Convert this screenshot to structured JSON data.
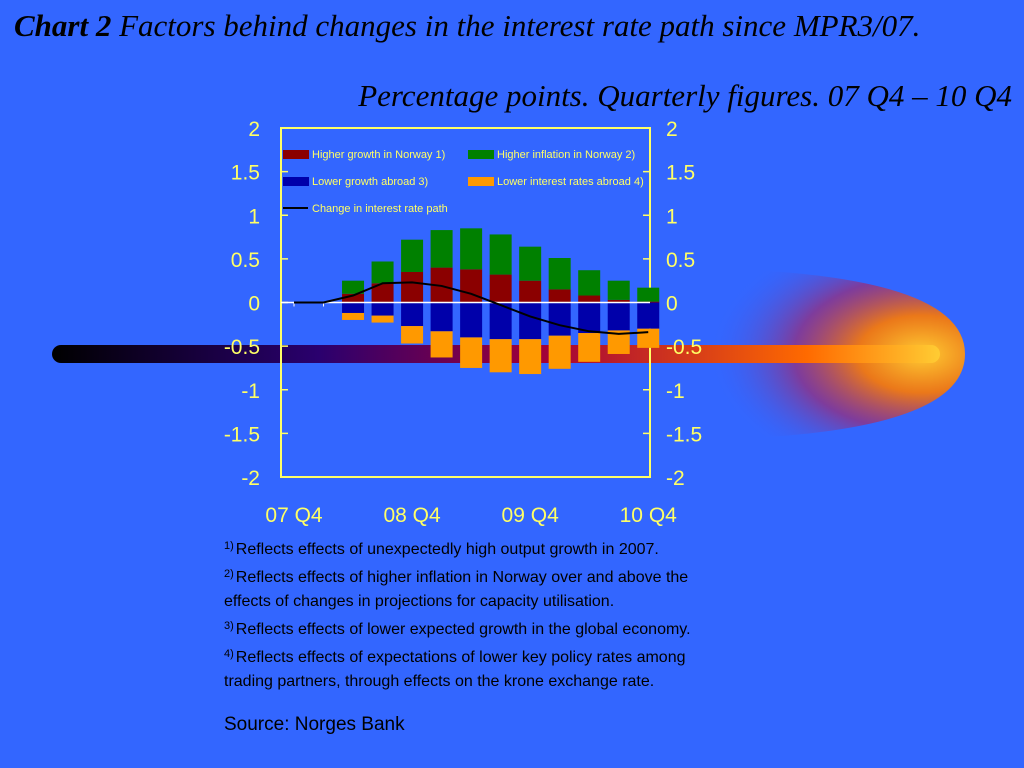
{
  "slide": {
    "title_bold": "Chart 2",
    "title_rest": " Factors behind changes in the interest rate path since MPR3/07.",
    "subtitle": "Percentage points. Quarterly figures. 07 Q4 – 10 Q4",
    "footnotes": [
      {
        "marker": "1)",
        "text": "Reflects effects of unexpectedly high output growth in 2007."
      },
      {
        "marker": "2)",
        "text": "Reflects effects of higher inflation in Norway over and above the effects of changes in projections for capacity utilisation."
      },
      {
        "marker": "3)",
        "text": "Reflects effects of lower expected growth in the global economy."
      },
      {
        "marker": "4)",
        "text": "Reflects effects of expectations of lower key policy rates among trading partners, through effects on the krone exchange rate."
      }
    ],
    "source": "Source: Norges Bank"
  },
  "colors": {
    "background": "#3366ff",
    "axis": "#ffff66",
    "higher_growth_norway": "#8b0000",
    "higher_inflation_norway": "#008000",
    "lower_growth_abroad": "#0000aa",
    "lower_rates_abroad": "#ff9900",
    "interest_path": "#000000"
  },
  "chart_data": {
    "type": "bar",
    "stacked": true,
    "title": "",
    "xlabel": "",
    "ylabel": "",
    "ylim": [
      -2,
      2
    ],
    "yticks": [
      "2",
      "1.5",
      "1",
      "0.5",
      "0",
      "-0.5",
      "-1",
      "-1.5",
      "-2"
    ],
    "ytick_values": [
      2,
      1.5,
      1,
      0.5,
      0,
      -0.5,
      -1,
      -1.5,
      -2
    ],
    "x_tick_labels": [
      "07 Q4",
      "08 Q4",
      "09 Q4",
      "10 Q4"
    ],
    "x_tick_positions": [
      0,
      4,
      8,
      12
    ],
    "categories": [
      "07 Q4",
      "08 Q1",
      "08 Q2",
      "08 Q3",
      "08 Q4",
      "09 Q1",
      "09 Q2",
      "09 Q3",
      "09 Q4",
      "10 Q1",
      "10 Q2",
      "10 Q3",
      "10 Q4"
    ],
    "series": [
      {
        "name": "Higher growth in Norway 1)",
        "color": "#8b0000",
        "values": [
          0,
          0,
          0.1,
          0.22,
          0.35,
          0.4,
          0.38,
          0.32,
          0.25,
          0.15,
          0.08,
          0.03,
          0.01
        ]
      },
      {
        "name": "Higher inflation in Norway 2)",
        "color": "#008000",
        "values": [
          0,
          0,
          0.15,
          0.25,
          0.37,
          0.43,
          0.47,
          0.46,
          0.39,
          0.36,
          0.29,
          0.22,
          0.16
        ]
      },
      {
        "name": "Lower growth abroad 3)",
        "color": "#0000aa",
        "values": [
          0,
          0,
          -0.12,
          -0.15,
          -0.27,
          -0.33,
          -0.4,
          -0.42,
          -0.42,
          -0.38,
          -0.35,
          -0.32,
          -0.3
        ]
      },
      {
        "name": "Lower interest rates abroad 4)",
        "color": "#ff9900",
        "values": [
          0,
          0,
          -0.08,
          -0.08,
          -0.2,
          -0.3,
          -0.35,
          -0.38,
          -0.4,
          -0.38,
          -0.33,
          -0.27,
          -0.22
        ]
      }
    ],
    "line": {
      "name": "Change in interest rate path",
      "color": "#000000",
      "values": [
        0,
        0,
        0.08,
        0.22,
        0.23,
        0.19,
        0.1,
        -0.03,
        -0.16,
        -0.26,
        -0.33,
        -0.36,
        -0.34
      ]
    },
    "legend": "top-left, inside plot"
  }
}
